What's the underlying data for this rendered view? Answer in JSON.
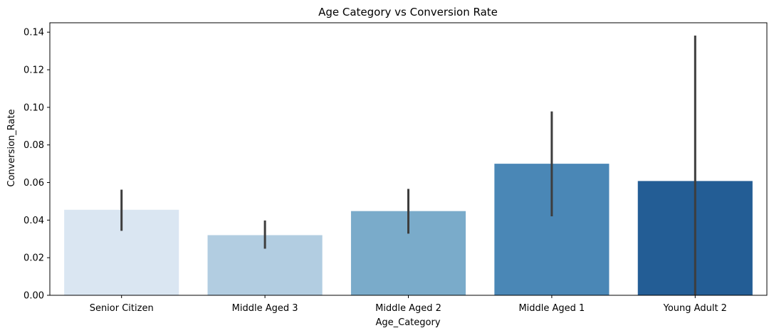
{
  "chart_data": {
    "type": "bar",
    "title": "Age Category vs Conversion Rate",
    "xlabel": "Age_Category",
    "ylabel": "Conversion_Rate",
    "categories": [
      "Senior Citizen",
      "Middle Aged 3",
      "Middle Aged 2",
      "Middle Aged 1",
      "Young Adult 2"
    ],
    "values": [
      0.0455,
      0.032,
      0.0448,
      0.07,
      0.0608
    ],
    "error_low": [
      0.0343,
      0.0248,
      0.0328,
      0.042,
      0.0
    ],
    "error_high": [
      0.0562,
      0.0398,
      0.0566,
      0.0978,
      0.1382
    ],
    "ylim": [
      0,
      0.145
    ],
    "yticks": [
      "0.00",
      "0.02",
      "0.04",
      "0.06",
      "0.08",
      "0.10",
      "0.12",
      "0.14"
    ],
    "colors": [
      "#dae6f2",
      "#b2cde1",
      "#7aabca",
      "#4a87b6",
      "#235d95"
    ],
    "error_color": "#3d3d3d",
    "grid": false,
    "legend": "none"
  }
}
